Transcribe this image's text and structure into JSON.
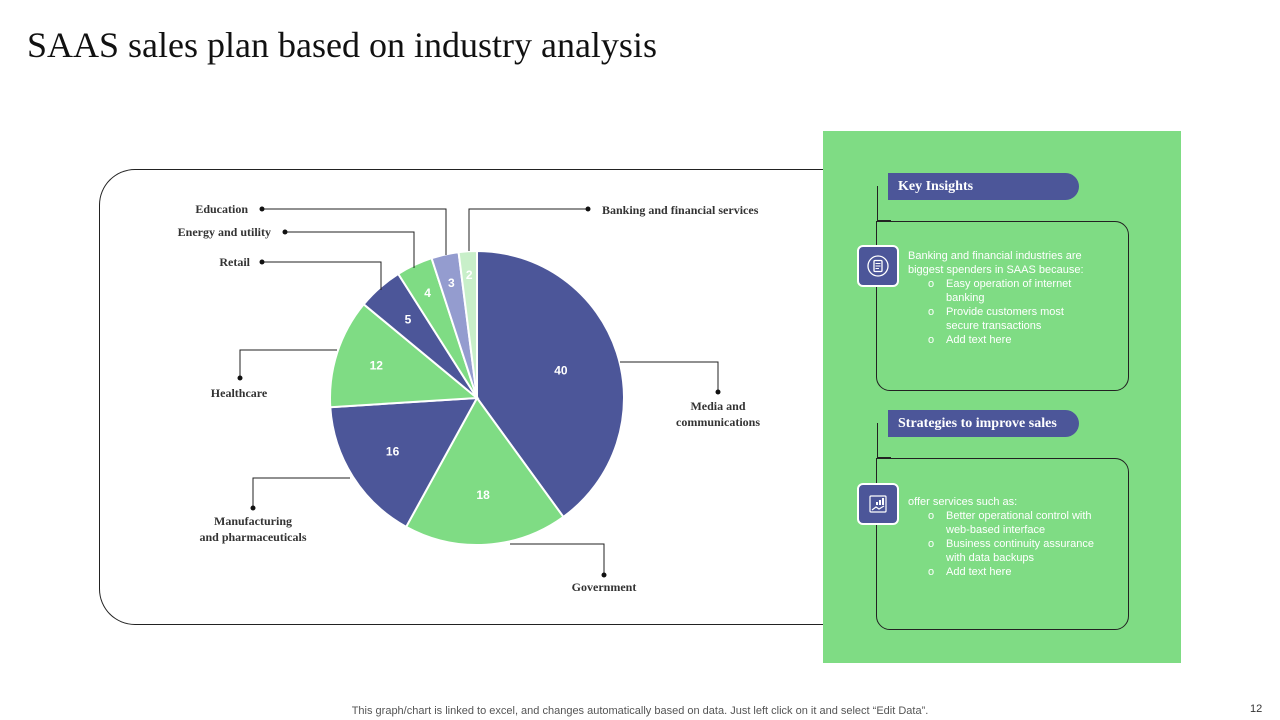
{
  "title": "SAAS sales plan based on industry analysis",
  "chart_data": {
    "type": "pie",
    "slices": [
      {
        "label": "Media  and communications",
        "value": 40,
        "color": "#4c5699"
      },
      {
        "label": "Government",
        "value": 18,
        "color": "#7fdc84"
      },
      {
        "label": "Manufacturing and pharmaceuticals",
        "value": 16,
        "color": "#4c5699"
      },
      {
        "label": "Healthcare",
        "value": 12,
        "color": "#7fdc84"
      },
      {
        "label": "Retail",
        "value": 5,
        "color": "#4c5699"
      },
      {
        "label": "Energy  and  utility",
        "value": 4,
        "color": "#7fdc84"
      },
      {
        "label": "Education",
        "value": 3,
        "color": "#949ccf"
      },
      {
        "label": "Banking  and  financial  services",
        "value": 2,
        "color": "#c8efc9"
      }
    ]
  },
  "key_insights": {
    "header": "Key Insights",
    "intro": "Banking and financial industries are biggest spenders in SAAS because:",
    "bullets": [
      "Easy operation of internet banking",
      "Provide customers most secure transactions",
      "Add text here"
    ],
    "icon": "document-icon"
  },
  "strategies": {
    "header": "Strategies to improve sales",
    "intro": "offer services such as:",
    "bullets": [
      "Better operational control with web-based interface",
      "Business continuity assurance with data backups",
      "Add text here"
    ],
    "icon": "growth-chart-icon"
  },
  "footer_note": "This graph/chart is linked to excel,  and changes automatically based on data. Just left click on it and select “Edit Data”.",
  "page_number": "12",
  "colors": {
    "primary_blue": "#4c5699",
    "green": "#7fdc84"
  }
}
